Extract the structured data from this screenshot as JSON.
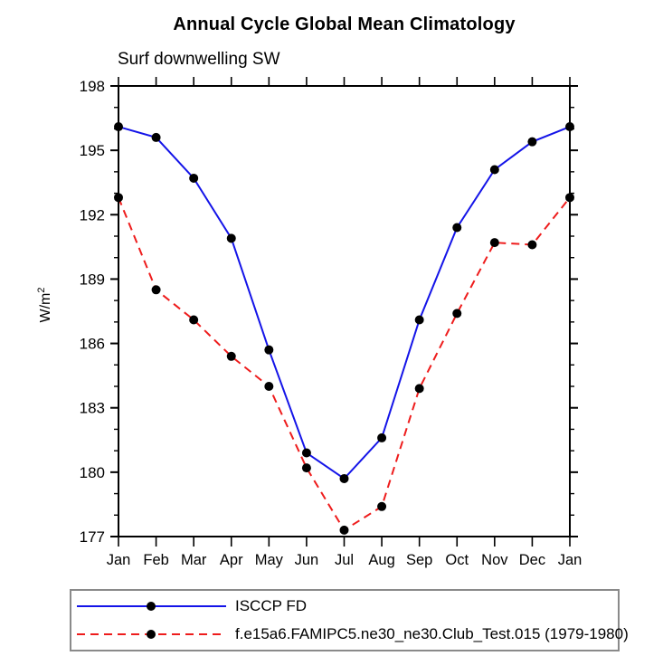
{
  "chart_data": {
    "type": "line",
    "title": "Annual Cycle Global Mean Climatology",
    "subtitle": "Surf downwelling SW",
    "ylabel_base": "W/m",
    "ylabel_exponent": "2",
    "categories": [
      "Jan",
      "Feb",
      "Mar",
      "Apr",
      "May",
      "Jun",
      "Jul",
      "Aug",
      "Sep",
      "Oct",
      "Nov",
      "Dec",
      "Jan"
    ],
    "ylim": [
      177,
      198
    ],
    "ytick_labels": [
      177,
      180,
      183,
      186,
      189,
      192,
      195,
      198
    ],
    "ytick_interval": 3,
    "minor_tick_interval": 1,
    "grid": "off",
    "legend_position": "bottom",
    "series": [
      {
        "name": "ISCCP FD",
        "style": "solid",
        "color": "#1414e8",
        "marker": "filled-black-circle",
        "values": [
          196.1,
          195.6,
          193.7,
          190.9,
          185.7,
          180.9,
          179.7,
          181.6,
          187.1,
          191.4,
          194.1,
          195.4,
          196.1
        ]
      },
      {
        "name": "f.e15a6.FAMIPC5.ne30_ne30.Club_Test.015 (1979-1980)",
        "style": "dashed",
        "color": "#ee1c1c",
        "marker": "filled-black-circle",
        "values": [
          192.8,
          188.5,
          187.1,
          185.4,
          184.0,
          180.2,
          177.3,
          178.4,
          183.9,
          187.4,
          190.7,
          190.6,
          192.8
        ]
      }
    ],
    "axis_color": "#000000",
    "marker_color": "#000000",
    "legend_border_color": "#8a8a8a"
  }
}
